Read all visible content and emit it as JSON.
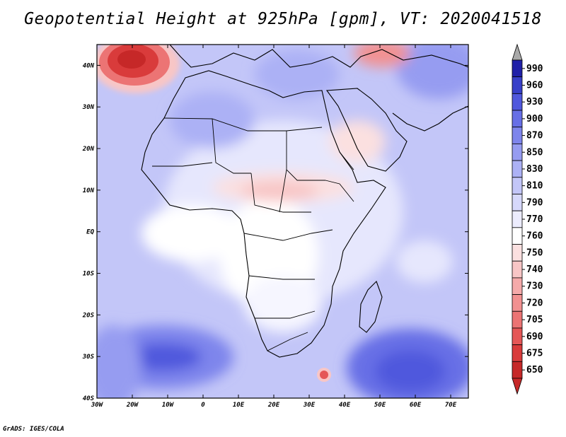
{
  "title": "Geopotential Height at 925hPa [gpm], VT: 2020041518",
  "credit": "GrADS: IGES/COLA",
  "map": {
    "lon_range": [
      -30,
      75
    ],
    "lat_range": [
      -40,
      45
    ],
    "x_ticks": [
      "30W",
      "20W",
      "10W",
      "0",
      "10E",
      "20E",
      "30E",
      "40E",
      "50E",
      "60E",
      "70E"
    ],
    "y_ticks": [
      "40N",
      "30N",
      "20N",
      "10N",
      "EQ",
      "10S",
      "20S",
      "30S",
      "40S"
    ]
  },
  "colorbar": {
    "levels": [
      "650",
      "675",
      "690",
      "705",
      "720",
      "730",
      "740",
      "750",
      "760",
      "770",
      "790",
      "810",
      "830",
      "850",
      "870",
      "900",
      "930",
      "960",
      "990"
    ],
    "colors": [
      "#c62828",
      "#d93b3b",
      "#e55757",
      "#ec7474",
      "#f29191",
      "#f5aaaa",
      "#f8c6c6",
      "#fbe0e0",
      "#ffffff",
      "#ececfd",
      "#d6d8fb",
      "#c3c6f8",
      "#acb1f5",
      "#969cf1",
      "#7e85ec",
      "#676fe6",
      "#5058dd",
      "#3840c9",
      "#2020a8"
    ]
  }
}
